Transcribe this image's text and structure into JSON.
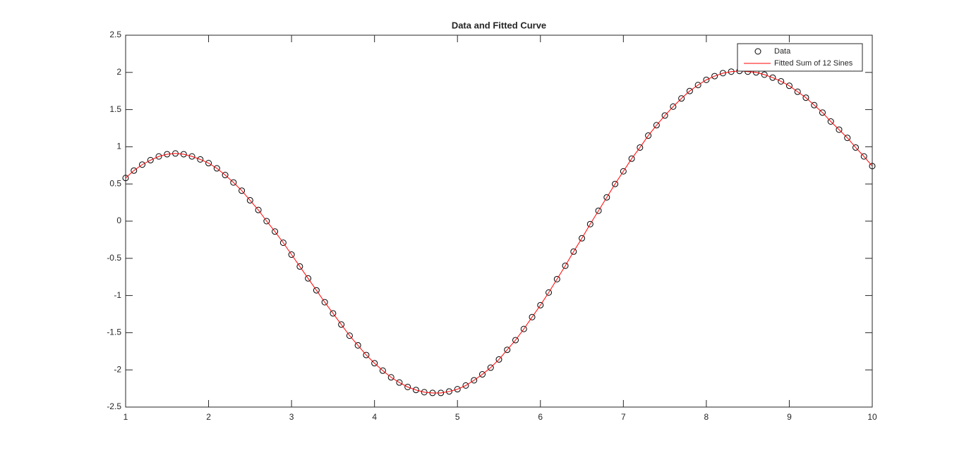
{
  "chart_data": {
    "type": "line",
    "title": "Data and Fitted Curve",
    "x": [
      1.0,
      1.1,
      1.2,
      1.3,
      1.4,
      1.5,
      1.6,
      1.7,
      1.8,
      1.9,
      2.0,
      2.1,
      2.2,
      2.3,
      2.4,
      2.5,
      2.6,
      2.7,
      2.8,
      2.9,
      3.0,
      3.1,
      3.2,
      3.3,
      3.4,
      3.5,
      3.6,
      3.7,
      3.8,
      3.9,
      4.0,
      4.1,
      4.2,
      4.3,
      4.4,
      4.5,
      4.6,
      4.7,
      4.8,
      4.9,
      5.0,
      5.1,
      5.2,
      5.3,
      5.4,
      5.5,
      5.6,
      5.7,
      5.8,
      5.9,
      6.0,
      6.1,
      6.2,
      6.3,
      6.4,
      6.5,
      6.6,
      6.7,
      6.8,
      6.9,
      7.0,
      7.1,
      7.2,
      7.3,
      7.4,
      7.5,
      7.6,
      7.7,
      7.8,
      7.9,
      8.0,
      8.1,
      8.2,
      8.3,
      8.4,
      8.5,
      8.6,
      8.7,
      8.8,
      8.9,
      9.0,
      9.1,
      9.2,
      9.3,
      9.4,
      9.5,
      9.6,
      9.7,
      9.8,
      9.9,
      10.0
    ],
    "series": [
      {
        "name": "Data",
        "color": "#000000",
        "marker": "circle",
        "values": [
          0.58,
          0.68,
          0.76,
          0.82,
          0.87,
          0.9,
          0.91,
          0.9,
          0.87,
          0.83,
          0.78,
          0.71,
          0.62,
          0.52,
          0.41,
          0.28,
          0.15,
          0.0,
          -0.14,
          -0.29,
          -0.45,
          -0.61,
          -0.77,
          -0.93,
          -1.09,
          -1.24,
          -1.39,
          -1.54,
          -1.67,
          -1.8,
          -1.91,
          -2.01,
          -2.1,
          -2.17,
          -2.23,
          -2.27,
          -2.3,
          -2.31,
          -2.31,
          -2.29,
          -2.26,
          -2.21,
          -2.14,
          -2.06,
          -1.97,
          -1.86,
          -1.73,
          -1.6,
          -1.45,
          -1.29,
          -1.13,
          -0.96,
          -0.78,
          -0.6,
          -0.41,
          -0.23,
          -0.04,
          0.14,
          0.32,
          0.5,
          0.67,
          0.84,
          0.99,
          1.15,
          1.29,
          1.42,
          1.54,
          1.65,
          1.75,
          1.83,
          1.9,
          1.95,
          1.99,
          2.01,
          2.02,
          2.01,
          2.0,
          1.97,
          1.93,
          1.88,
          1.82,
          1.74,
          1.66,
          1.56,
          1.46,
          1.34,
          1.23,
          1.12,
          0.99,
          0.87,
          0.74
        ]
      },
      {
        "name": "Fitted Sum of 12 Sines",
        "color": "#ff0000",
        "marker": "none",
        "values": [
          0.58,
          0.68,
          0.76,
          0.82,
          0.87,
          0.9,
          0.91,
          0.9,
          0.87,
          0.83,
          0.78,
          0.71,
          0.62,
          0.52,
          0.41,
          0.28,
          0.15,
          0.0,
          -0.14,
          -0.29,
          -0.45,
          -0.61,
          -0.77,
          -0.93,
          -1.09,
          -1.24,
          -1.39,
          -1.54,
          -1.67,
          -1.8,
          -1.91,
          -2.01,
          -2.1,
          -2.17,
          -2.23,
          -2.27,
          -2.3,
          -2.31,
          -2.31,
          -2.29,
          -2.26,
          -2.21,
          -2.14,
          -2.06,
          -1.97,
          -1.86,
          -1.73,
          -1.6,
          -1.45,
          -1.29,
          -1.13,
          -0.96,
          -0.78,
          -0.6,
          -0.41,
          -0.23,
          -0.04,
          0.14,
          0.32,
          0.5,
          0.67,
          0.84,
          0.99,
          1.15,
          1.29,
          1.42,
          1.54,
          1.65,
          1.75,
          1.83,
          1.9,
          1.95,
          1.99,
          2.01,
          2.02,
          2.01,
          2.0,
          1.97,
          1.93,
          1.88,
          1.82,
          1.74,
          1.66,
          1.56,
          1.46,
          1.34,
          1.23,
          1.12,
          0.99,
          0.87,
          0.74
        ]
      }
    ],
    "xlim": [
      1,
      10
    ],
    "xticks": [
      1,
      2,
      3,
      4,
      5,
      6,
      7,
      8,
      9,
      10
    ],
    "ylim": [
      -2.5,
      2.5
    ],
    "yticks": [
      -2.5,
      -2,
      -1.5,
      -1,
      -0.5,
      0,
      0.5,
      1,
      1.5,
      2,
      2.5
    ],
    "grid": false,
    "legend": "northeast"
  }
}
